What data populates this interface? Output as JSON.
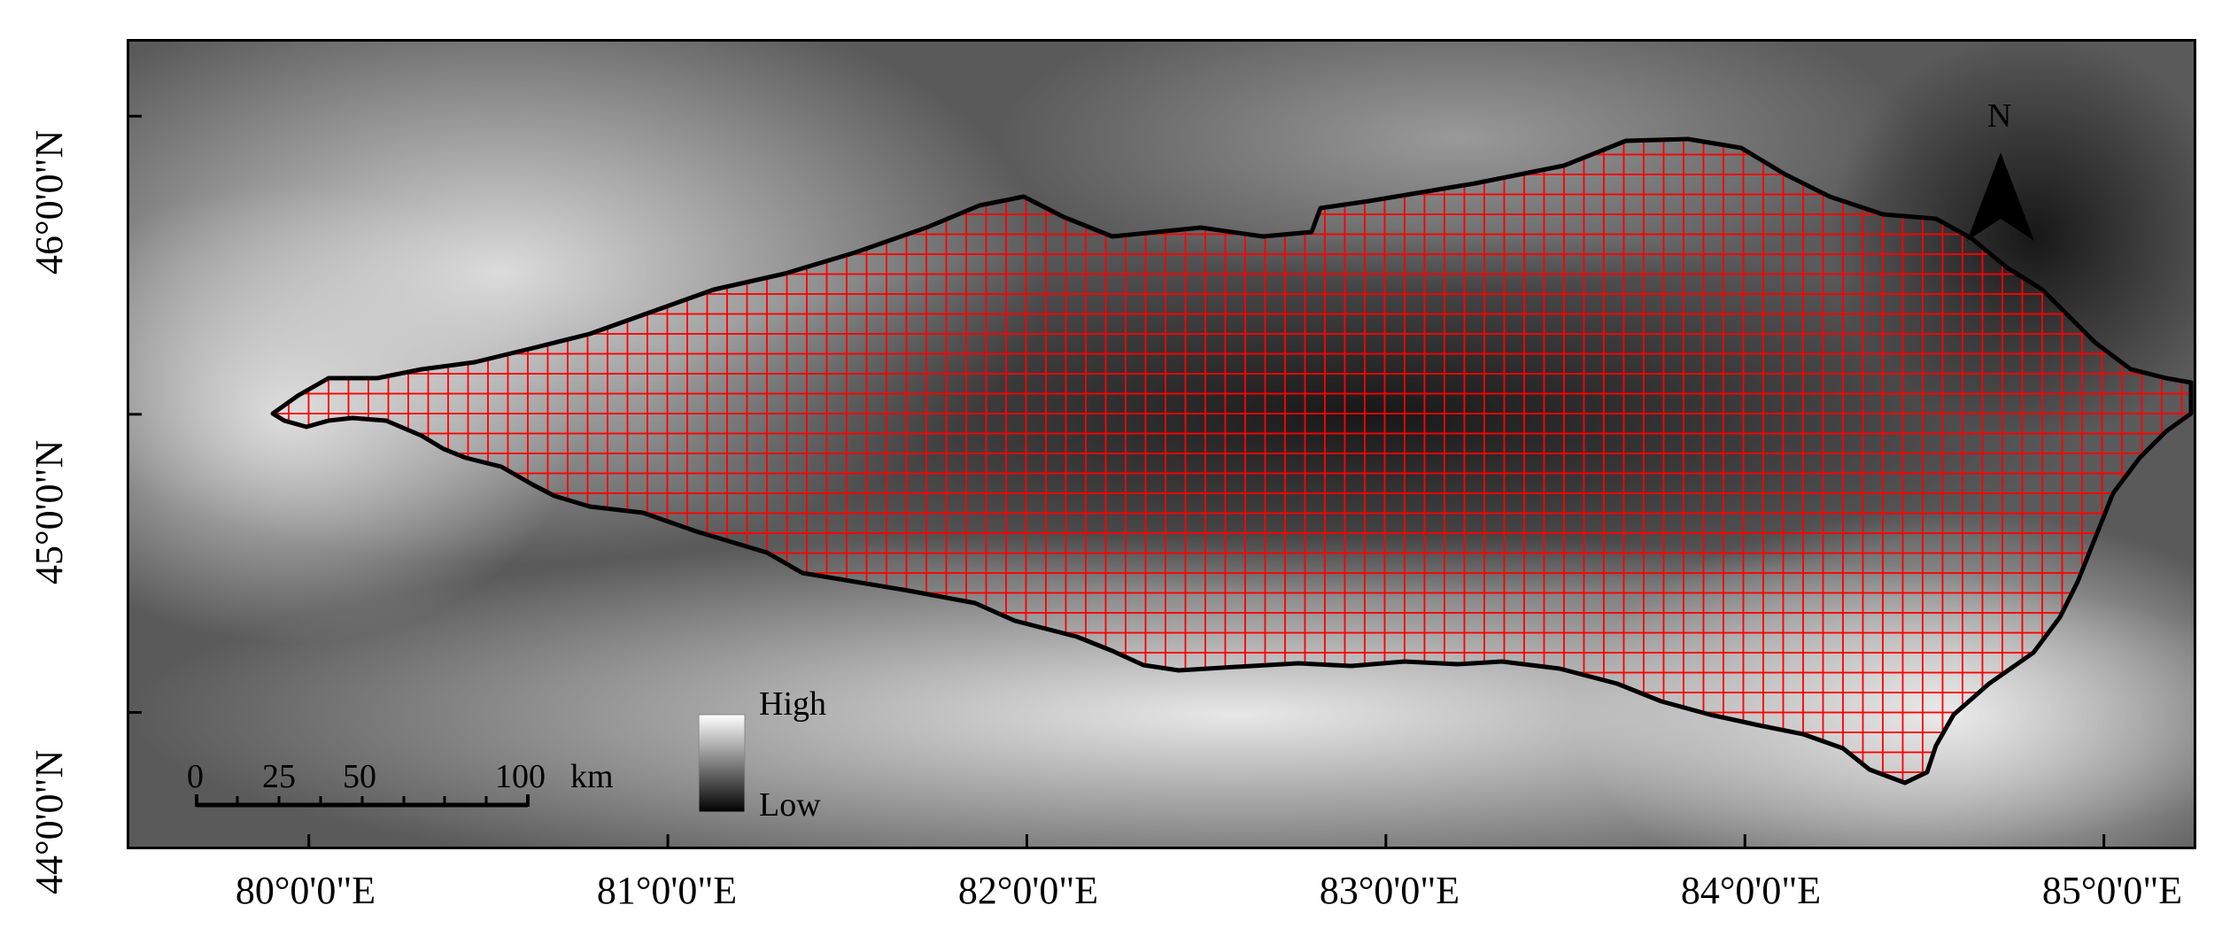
{
  "map": {
    "x_ticks": [
      {
        "lon": 80,
        "label": "80°0'0\"E"
      },
      {
        "lon": 81,
        "label": "81°0'0\"E"
      },
      {
        "lon": 82,
        "label": "82°0'0\"E"
      },
      {
        "lon": 83,
        "label": "83°0'0\"E"
      },
      {
        "lon": 84,
        "label": "84°0'0\"E"
      },
      {
        "lon": 85,
        "label": "85°0'0\"E"
      }
    ],
    "y_ticks": [
      {
        "lat": 46,
        "label": "46°0'0\"N"
      },
      {
        "lat": 45,
        "label": "45°0'0\"N"
      },
      {
        "lat": 44,
        "label": "44°0'0\"N"
      }
    ],
    "lon_range": [
      79.5,
      85.25
    ],
    "lat_range": [
      43.55,
      46.25
    ],
    "legend": {
      "high_label": "High",
      "low_label": "Low"
    },
    "scale_bar": {
      "labels": [
        "0",
        "25",
        "50",
        "100"
      ],
      "unit": "km"
    },
    "north_arrow": {
      "label": "N"
    },
    "colors": {
      "grid": "#ff0000",
      "boundary": "#000000"
    }
  }
}
